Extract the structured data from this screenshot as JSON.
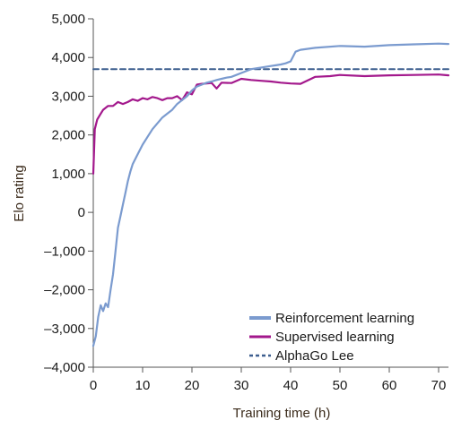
{
  "chart_data": {
    "type": "line",
    "xlabel": "Training time (h)",
    "ylabel": "Elo rating",
    "xlim": [
      0,
      72
    ],
    "ylim": [
      -4000,
      5000
    ],
    "xticks": [
      0,
      10,
      20,
      30,
      40,
      50,
      60,
      70
    ],
    "xtick_labels": [
      "0",
      "10",
      "20",
      "30",
      "40",
      "50",
      "60",
      "70"
    ],
    "yticks": [
      -4000,
      -3000,
      -2000,
      -1000,
      0,
      1000,
      2000,
      3000,
      4000,
      5000
    ],
    "ytick_labels": [
      "–4,000",
      "–3,000",
      "–2,000",
      "–1,000",
      "0",
      "1,000",
      "2,000",
      "3,000",
      "4,000",
      "5,000"
    ],
    "grid": false,
    "legend_position": "bottom-right",
    "series": [
      {
        "name": "Reinforcement learning",
        "color": "#7b9bcf",
        "style": "solid",
        "x": [
          0,
          0.5,
          1,
          1.5,
          2,
          2.5,
          3,
          3.5,
          4,
          4.5,
          5,
          5.5,
          6,
          6.5,
          7,
          7.5,
          8,
          9,
          10,
          11,
          12,
          13,
          14,
          15,
          16,
          17,
          18,
          19,
          20,
          21,
          22,
          23,
          24,
          25,
          26,
          27,
          28,
          29,
          30,
          31,
          32,
          33,
          34,
          35,
          36,
          37,
          38,
          39,
          40,
          41,
          42,
          45,
          50,
          55,
          60,
          65,
          70,
          72
        ],
        "y": [
          -3450,
          -3200,
          -2700,
          -2400,
          -2550,
          -2350,
          -2450,
          -2000,
          -1600,
          -1000,
          -400,
          -100,
          200,
          500,
          800,
          1050,
          1250,
          1500,
          1750,
          1950,
          2150,
          2300,
          2450,
          2550,
          2650,
          2800,
          2900,
          3000,
          3150,
          3250,
          3300,
          3350,
          3380,
          3420,
          3450,
          3480,
          3500,
          3550,
          3600,
          3650,
          3700,
          3720,
          3740,
          3760,
          3780,
          3800,
          3820,
          3850,
          3900,
          4150,
          4200,
          4250,
          4300,
          4280,
          4320,
          4340,
          4360,
          4350
        ]
      },
      {
        "name": "Supervised learning",
        "color": "#a3188c",
        "style": "solid",
        "x": [
          0,
          0.3,
          0.8,
          1.5,
          2,
          3,
          4,
          5,
          6,
          7,
          8,
          9,
          10,
          11,
          12,
          13,
          14,
          15,
          16,
          17,
          18,
          19,
          20,
          21,
          22,
          23,
          24,
          25,
          26,
          28,
          30,
          32,
          34,
          36,
          38,
          40,
          42,
          45,
          48,
          50,
          55,
          60,
          65,
          70,
          72
        ],
        "y": [
          1000,
          2150,
          2400,
          2550,
          2650,
          2750,
          2750,
          2850,
          2800,
          2850,
          2920,
          2880,
          2950,
          2920,
          2980,
          2950,
          2900,
          2950,
          2950,
          3000,
          2900,
          3100,
          3050,
          3300,
          3320,
          3330,
          3340,
          3200,
          3350,
          3340,
          3450,
          3420,
          3400,
          3380,
          3350,
          3330,
          3320,
          3500,
          3520,
          3550,
          3520,
          3540,
          3550,
          3560,
          3540
        ]
      },
      {
        "name": "AlphaGo Lee",
        "color": "#3d5f8f",
        "style": "dashed",
        "x": [
          0,
          72
        ],
        "y": [
          3700,
          3700
        ]
      }
    ]
  }
}
